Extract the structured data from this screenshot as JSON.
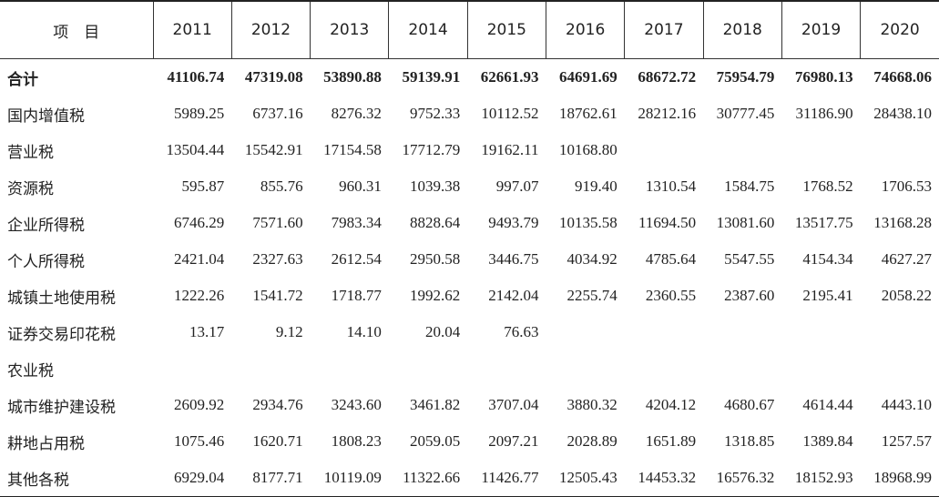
{
  "table": {
    "header": [
      "项　目",
      "2011",
      "2012",
      "2013",
      "2014",
      "2015",
      "2016",
      "2017",
      "2018",
      "2019",
      "2020"
    ],
    "rows": [
      [
        "合计",
        "41106.74",
        "47319.08",
        "53890.88",
        "59139.91",
        "62661.93",
        "64691.69",
        "68672.72",
        "75954.79",
        "76980.13",
        "74668.06"
      ],
      [
        "国内增值税",
        "5989.25",
        "6737.16",
        "8276.32",
        "9752.33",
        "10112.52",
        "18762.61",
        "28212.16",
        "30777.45",
        "31186.90",
        "28438.10"
      ],
      [
        "营业税",
        "13504.44",
        "15542.91",
        "17154.58",
        "17712.79",
        "19162.11",
        "10168.80",
        null,
        null,
        null,
        null
      ],
      [
        "资源税",
        "595.87",
        "855.76",
        "960.31",
        "1039.38",
        "997.07",
        "919.40",
        "1310.54",
        "1584.75",
        "1768.52",
        "1706.53"
      ],
      [
        "企业所得税",
        "6746.29",
        "7571.60",
        "7983.34",
        "8828.64",
        "9493.79",
        "10135.58",
        "11694.50",
        "13081.60",
        "13517.75",
        "13168.28"
      ],
      [
        "个人所得税",
        "2421.04",
        "2327.63",
        "2612.54",
        "2950.58",
        "3446.75",
        "4034.92",
        "4785.64",
        "5547.55",
        "4154.34",
        "4627.27"
      ],
      [
        "城镇土地使用税",
        "1222.26",
        "1541.72",
        "1718.77",
        "1992.62",
        "2142.04",
        "2255.74",
        "2360.55",
        "2387.60",
        "2195.41",
        "2058.22"
      ],
      [
        "证券交易印花税",
        "13.17",
        "9.12",
        "14.10",
        "20.04",
        "76.63",
        null,
        null,
        null,
        null,
        null
      ],
      [
        "农业税",
        null,
        null,
        null,
        null,
        null,
        null,
        null,
        null,
        null,
        null
      ],
      [
        "城市维护建设税",
        "2609.92",
        "2934.76",
        "3243.60",
        "3461.82",
        "3707.04",
        "3880.32",
        "4204.12",
        "4680.67",
        "4614.44",
        "4443.10"
      ],
      [
        "耕地占用税",
        "1075.46",
        "1620.71",
        "1808.23",
        "2059.05",
        "2097.21",
        "2028.89",
        "1651.89",
        "1318.85",
        "1389.84",
        "1257.57"
      ],
      [
        "其他各税",
        "6929.04",
        "8177.71",
        "10119.09",
        "11322.66",
        "11426.77",
        "12505.43",
        "14453.32",
        "16576.32",
        "18152.93",
        "18968.99"
      ]
    ]
  }
}
